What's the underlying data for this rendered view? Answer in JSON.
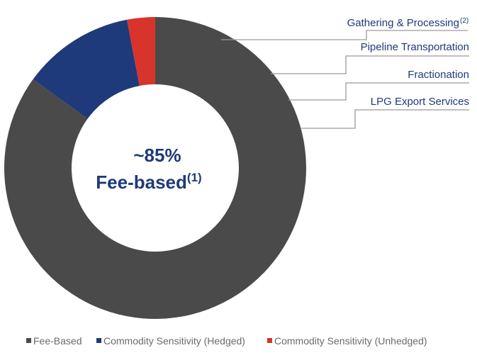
{
  "chart_data": {
    "type": "donut",
    "center_text": {
      "line1": "~85%",
      "line2": "Fee-based",
      "line2_sup": "(1)"
    },
    "slices": [
      {
        "name": "Fee-Based",
        "value": 85,
        "color": "#4a4a4a"
      },
      {
        "name": "Commodity Sensitivity (Hedged)",
        "value": 12,
        "color": "#1f3a7a"
      },
      {
        "name": "Commodity Sensitivity (Unhedged)",
        "value": 3,
        "color": "#d9342b"
      }
    ],
    "legend": {
      "placement": "bottom",
      "entries": [
        "Fee-Based",
        "Commodity Sensitivity (Hedged)",
        "Commodity Sensitivity (Unhedged)"
      ]
    },
    "callouts": [
      {
        "label": "Gathering & Processing",
        "sup": "(2)"
      },
      {
        "label": "Pipeline Transportation",
        "sup": ""
      },
      {
        "label": "Fractionation",
        "sup": ""
      },
      {
        "label": "LPG Export Services",
        "sup": ""
      }
    ],
    "callout_line_color": "#9a9a9a"
  }
}
